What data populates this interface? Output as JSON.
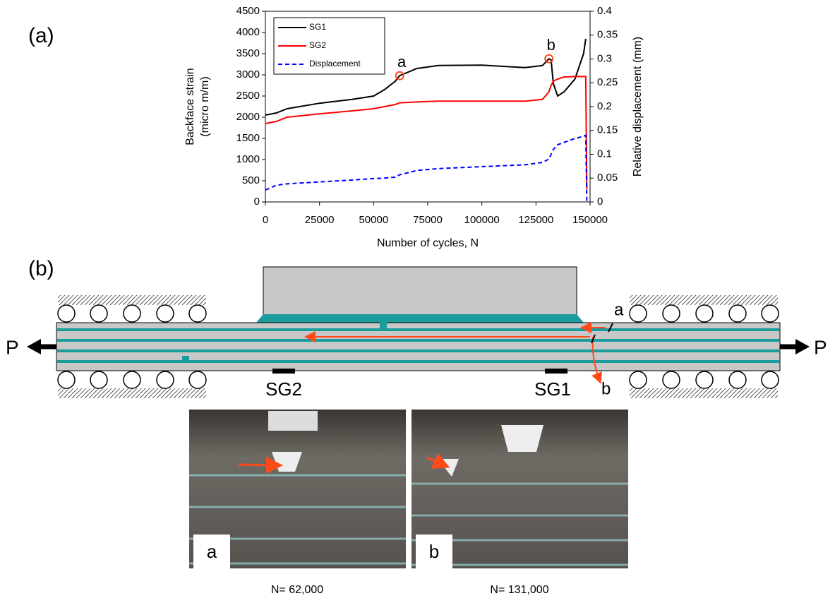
{
  "panel_labels": [
    "(a)",
    "(b)"
  ],
  "chart_data": {
    "type": "line",
    "x": [
      0,
      5000,
      10000,
      25000,
      40000,
      50000,
      55000,
      60000,
      62000,
      70000,
      80000,
      100000,
      120000,
      128000,
      131000,
      132000,
      133000,
      135000,
      138000,
      143000,
      147000,
      148000,
      148500
    ],
    "series": [
      {
        "name": "SG1",
        "color": "#000000",
        "values": [
          2050,
          2100,
          2200,
          2330,
          2420,
          2500,
          2650,
          2850,
          2980,
          3150,
          3220,
          3230,
          3170,
          3220,
          3380,
          3350,
          2800,
          2500,
          2600,
          2900,
          3500,
          3850,
          null
        ]
      },
      {
        "name": "SG2",
        "color": "#ff0000",
        "values": [
          1850,
          1900,
          2000,
          2080,
          2150,
          2200,
          2250,
          2300,
          2340,
          2360,
          2380,
          2380,
          2380,
          2420,
          2600,
          2750,
          2850,
          2900,
          2950,
          2960,
          2960,
          2960,
          300
        ]
      },
      {
        "name": "Displacement",
        "color": "#0000ff",
        "dashed": true,
        "axis": "y2",
        "values": [
          0.025,
          0.035,
          0.038,
          0.042,
          0.046,
          0.049,
          0.05,
          0.052,
          0.057,
          0.066,
          0.07,
          0.074,
          0.078,
          0.083,
          0.09,
          0.1,
          0.11,
          0.12,
          0.125,
          0.133,
          0.138,
          0.14,
          0
        ]
      }
    ],
    "xlim": [
      0,
      150000
    ],
    "xticks": [
      0,
      25000,
      50000,
      75000,
      100000,
      125000,
      150000
    ],
    "ylim": [
      0,
      4500
    ],
    "yticks": [
      0,
      500,
      1000,
      1500,
      2000,
      2500,
      3000,
      3500,
      4000,
      4500
    ],
    "y2lim": [
      0,
      0.4
    ],
    "y2ticks": [
      0,
      0.05,
      0.1,
      0.15,
      0.2,
      0.25,
      0.3,
      0.35,
      0.4
    ],
    "xlabel": "Number of cycles, N",
    "ylabel": [
      "Backface strain",
      "(micro m/m)"
    ],
    "y2label": "Relative displacement (mm)",
    "annotations": [
      {
        "text": "a",
        "x": 62000,
        "y": 2980
      },
      {
        "text": "b",
        "x": 131000,
        "y": 3380
      }
    ],
    "legend": "upper-left"
  },
  "diagram": {
    "crack_labels": [
      "a",
      "b"
    ],
    "load_labels": [
      "P",
      "P"
    ],
    "gauges": [
      "SG2",
      "SG1"
    ]
  },
  "photos": [
    {
      "label": "a",
      "caption": "N= 62,000"
    },
    {
      "label": "b",
      "caption": "N= 131,000"
    }
  ]
}
